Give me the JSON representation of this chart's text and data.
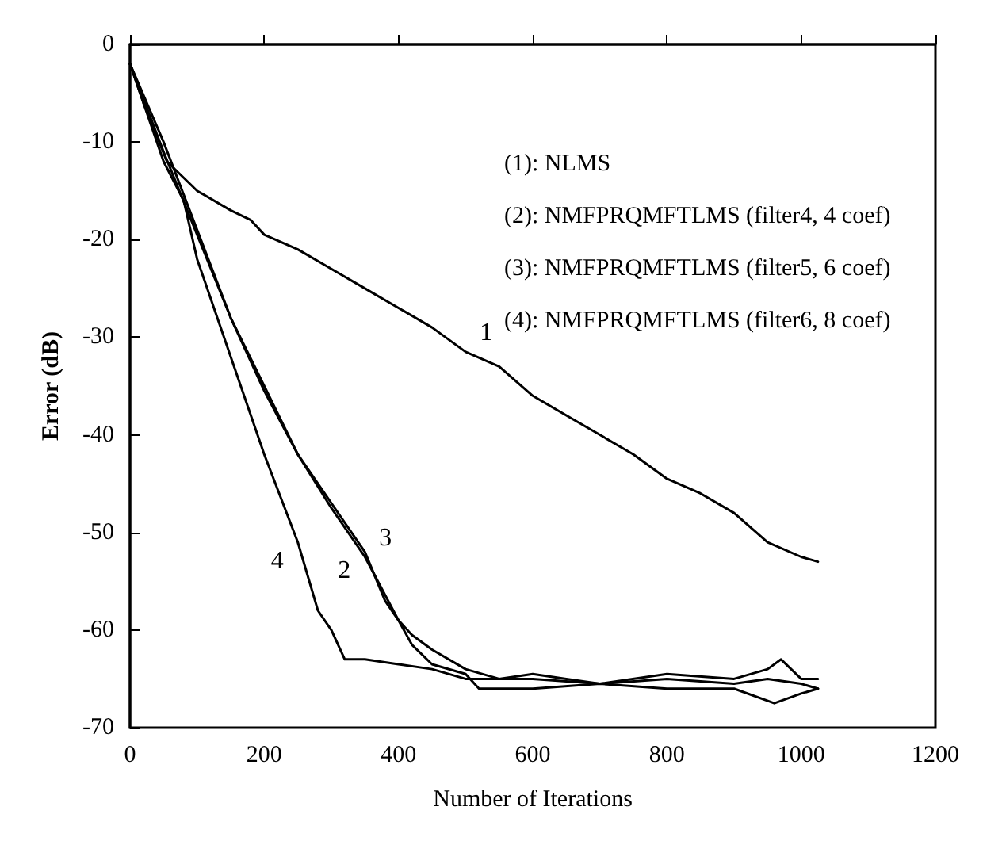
{
  "chart_data": {
    "type": "line",
    "xlabel": "Number of Iterations",
    "ylabel": "Error (dB)",
    "xlim": [
      0,
      1200
    ],
    "xticks": [
      0,
      200,
      400,
      600,
      800,
      1000,
      1200
    ],
    "ylim": [
      -70,
      0
    ],
    "yticks": [
      0,
      -10,
      -20,
      -30,
      -40,
      -50,
      -60,
      -70
    ],
    "grid": false,
    "marker": "none",
    "line_style": "solid",
    "series": [
      {
        "name": "1",
        "color": "#000000",
        "x": [
          0,
          20,
          55,
          100,
          150,
          180,
          200,
          250,
          300,
          350,
          400,
          450,
          500,
          550,
          600,
          650,
          700,
          750,
          800,
          850,
          900,
          950,
          1000,
          1025
        ],
        "values": [
          -2,
          -6,
          -12,
          -15,
          -17,
          -18,
          -19.5,
          -21,
          -23,
          -25,
          -27,
          -29,
          -31.5,
          -33,
          -36,
          -38,
          -40,
          -42,
          -44.5,
          -46,
          -48,
          -51,
          -52.5,
          -53
        ]
      },
      {
        "name": "2",
        "color": "#000000",
        "x": [
          0,
          50,
          100,
          150,
          200,
          250,
          300,
          350,
          380,
          400,
          420,
          450,
          500,
          550,
          600,
          650,
          700,
          800,
          900,
          950,
          1000,
          1025
        ],
        "values": [
          -2,
          -10,
          -19,
          -28,
          -35,
          -42,
          -47,
          -52,
          -57,
          -59,
          -60.5,
          -62,
          -64,
          -65,
          -64.5,
          -65,
          -65.5,
          -65,
          -65.5,
          -65,
          -65.5,
          -66
        ]
      },
      {
        "name": "3",
        "color": "#000000",
        "x": [
          0,
          50,
          100,
          150,
          200,
          250,
          300,
          350,
          400,
          420,
          450,
          500,
          520,
          600,
          700,
          800,
          900,
          960,
          1000,
          1025
        ],
        "values": [
          -2,
          -11,
          -19.5,
          -28,
          -35.5,
          -42,
          -47.5,
          -52.5,
          -59,
          -61.5,
          -63.5,
          -64.5,
          -66,
          -66,
          -65.5,
          -66,
          -66,
          -67.5,
          -66.5,
          -66
        ]
      },
      {
        "name": "4",
        "color": "#000000",
        "x": [
          0,
          50,
          80,
          100,
          150,
          200,
          250,
          280,
          300,
          320,
          350,
          400,
          450,
          500,
          600,
          700,
          800,
          900,
          950,
          970,
          1000,
          1025
        ],
        "values": [
          -2,
          -12,
          -16,
          -22,
          -32,
          -42,
          -51,
          -58,
          -60,
          -63,
          -63,
          -63.5,
          -64,
          -65,
          -65,
          -65.5,
          -64.5,
          -65,
          -64,
          -63,
          -65,
          -65
        ]
      }
    ],
    "annotations": [
      "(1): NLMS",
      "(2): NMFPRQMFTLMS (filter4, 4 coef)",
      "(3): NMFPRQMFTLMS (filter5, 6 coef)",
      "(4): NMFPRQMFTLMS (filter6, 8 coef)"
    ]
  }
}
